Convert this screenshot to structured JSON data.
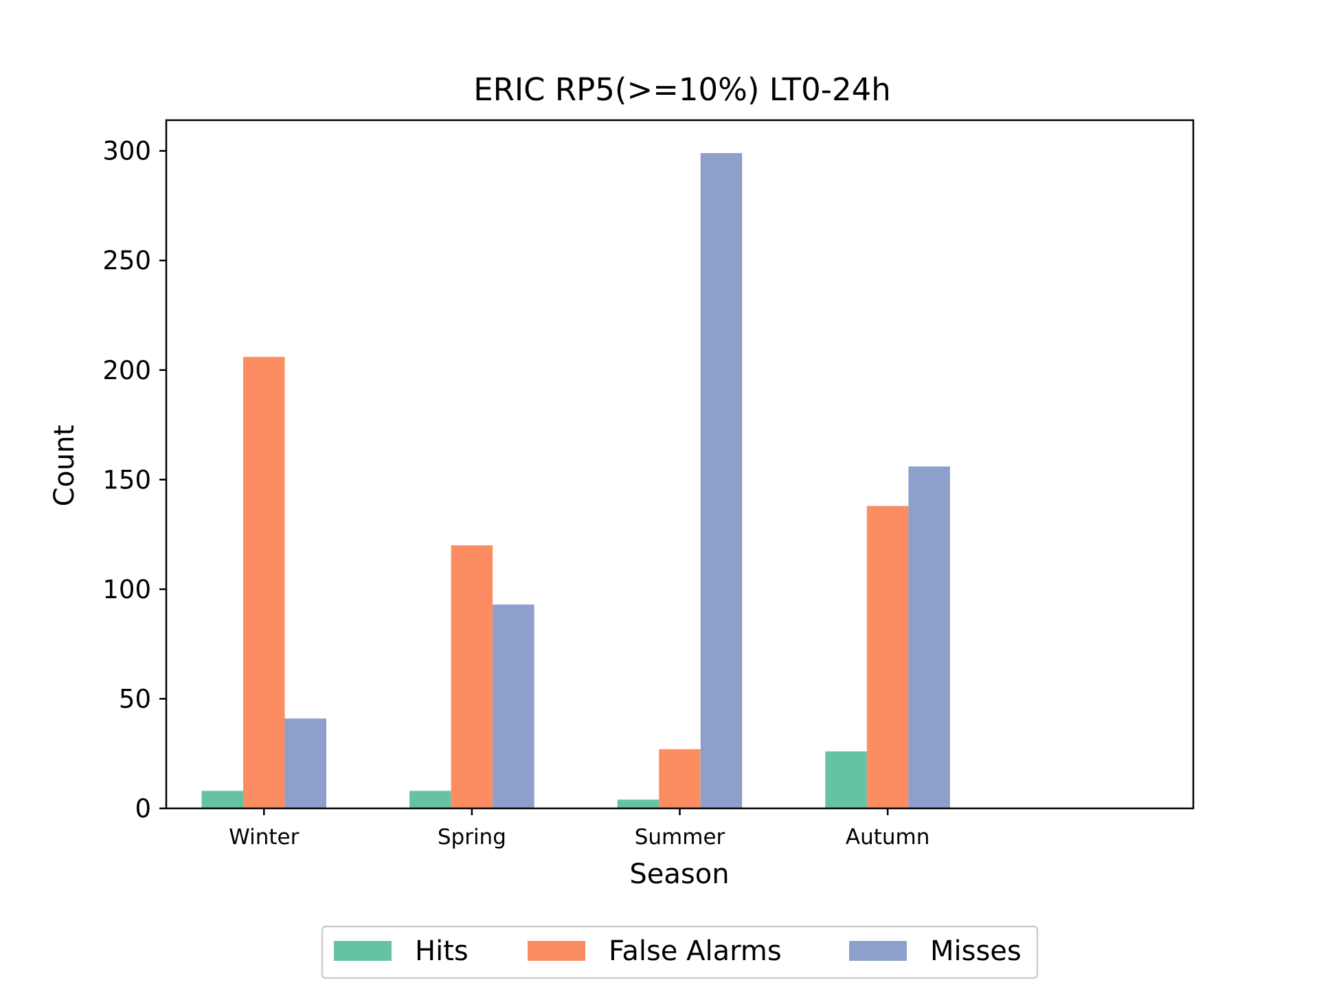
{
  "chart_data": {
    "type": "bar",
    "title": "ERIC RP5(>=10%) LT0-24h",
    "xlabel": "Season",
    "ylabel": "Count",
    "categories": [
      "Winter",
      "Spring",
      "Summer",
      "Autumn"
    ],
    "series": [
      {
        "name": "Hits",
        "color": "#66c2a5",
        "values": [
          8,
          8,
          4,
          26
        ]
      },
      {
        "name": "False Alarms",
        "color": "#fc8d62",
        "values": [
          206,
          120,
          27,
          138
        ]
      },
      {
        "name": "Misses",
        "color": "#8da0cb",
        "values": [
          41,
          93,
          299,
          156
        ]
      }
    ],
    "ylim": [
      0,
      314
    ],
    "yticks": [
      0,
      50,
      100,
      150,
      200,
      250,
      300
    ],
    "grid": false,
    "legend": "bottom-center"
  }
}
